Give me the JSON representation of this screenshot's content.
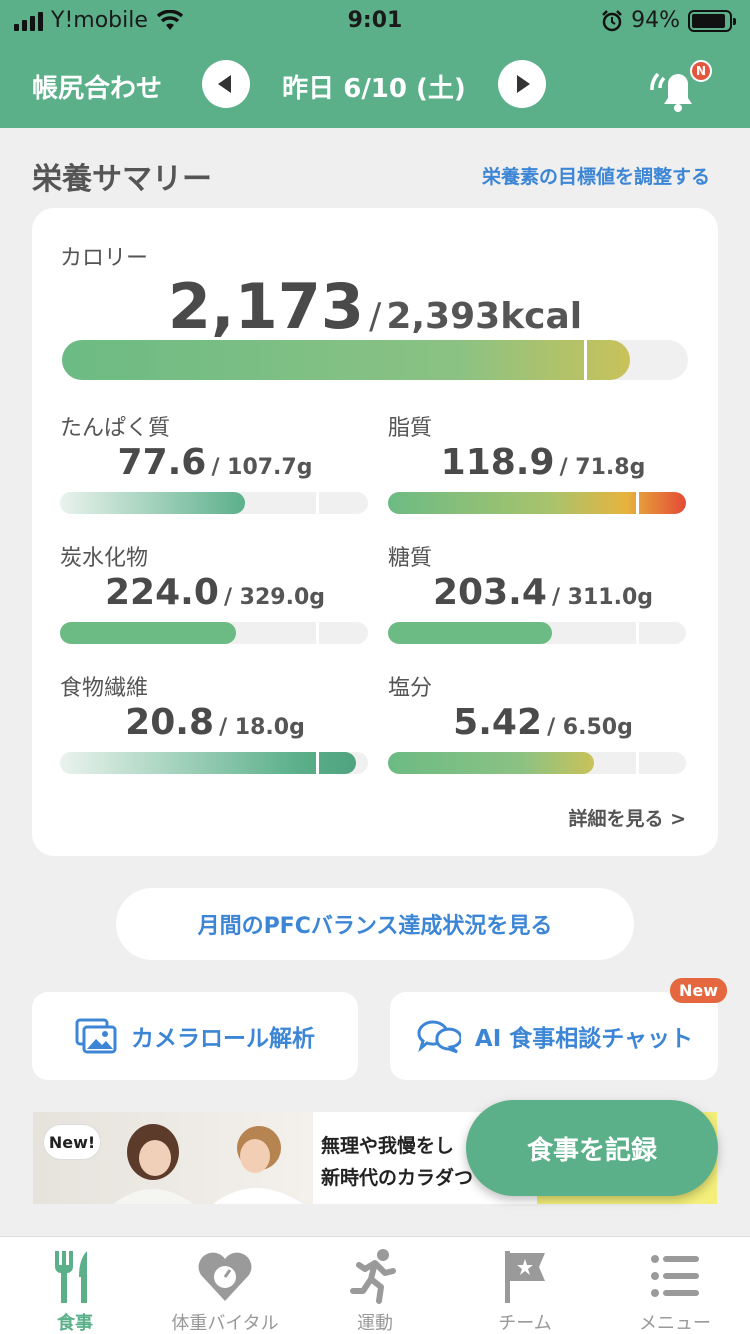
{
  "status_bar": {
    "carrier": "Y!mobile",
    "time": "9:01",
    "battery": "94%"
  },
  "header": {
    "title": "帳尻合わせ",
    "date": "昨日 6/10 (土)",
    "notification_badge": "N"
  },
  "summary": {
    "title": "栄養サマリー",
    "adjust_link": "栄養素の目標値を調整する",
    "calorie": {
      "label": "カロリー",
      "value": "2,173",
      "separator": "/",
      "target": "2,393kcal",
      "progress": 0.908
    },
    "nutrients": [
      {
        "label": "たんぱく質",
        "value": "77.6",
        "target": "/ 107.7g",
        "progress": 0.6
      },
      {
        "label": "脂質",
        "value": "118.9",
        "target": "/ 71.8g",
        "progress": 1.0
      },
      {
        "label": "炭水化物",
        "value": "224.0",
        "target": "/ 329.0g",
        "progress": 0.57
      },
      {
        "label": "糖質",
        "value": "203.4",
        "target": "/ 311.0g",
        "progress": 0.55
      },
      {
        "label": "食物繊維",
        "value": "20.8",
        "target": "/ 18.0g",
        "progress": 0.96
      },
      {
        "label": "塩分",
        "value": "5.42",
        "target": "/ 6.50g",
        "progress": 0.69
      }
    ],
    "detail_link": "詳細を見る >"
  },
  "pfc_button": "月間のPFCバランス達成状況を見る",
  "features": {
    "camera_roll": "カメラロール解析",
    "ai_chat": "AI 食事相談チャット",
    "new_badge": "New"
  },
  "banner": {
    "badge": "New!",
    "line1": "無理や我慢をし",
    "line2": "新時代のカラダつ"
  },
  "fab": "食事を記録",
  "tabs": [
    {
      "label": "食事",
      "icon": "fork-knife-icon",
      "active": true
    },
    {
      "label": "体重バイタル",
      "icon": "heart-scale-icon",
      "active": false
    },
    {
      "label": "運動",
      "icon": "running-icon",
      "active": false
    },
    {
      "label": "チーム",
      "icon": "flag-icon",
      "active": false
    },
    {
      "label": "メニュー",
      "icon": "menu-icon",
      "active": false
    }
  ],
  "colors": {
    "brand": "#5bb08a",
    "link": "#3d86d6",
    "alert": "#e4573f",
    "warn": "#c9c25a"
  }
}
